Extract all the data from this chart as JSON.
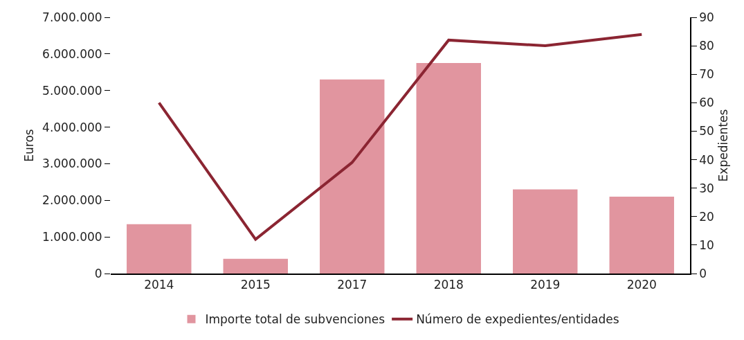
{
  "chart_data": {
    "type": "bar",
    "ylabel": "Euros",
    "y2label": "Expedientes",
    "categories": [
      "2014",
      "2015",
      "2017",
      "2018",
      "2019",
      "2020"
    ],
    "series": [
      {
        "name": "Importe total de subvenciones",
        "color": "#e1959f",
        "values": [
          1350000,
          400000,
          5300000,
          5750000,
          2300000,
          2100000
        ]
      },
      {
        "name": "Número de expedientes/entidades",
        "type": "line",
        "axis": "y2",
        "color": "#8b2532",
        "values": [
          60,
          12,
          39,
          82,
          80,
          84
        ]
      }
    ],
    "ylim": [
      0,
      7000000
    ],
    "yticks": [
      {
        "value": 0,
        "label": "0"
      },
      {
        "value": 1000000,
        "label": "1.000.000"
      },
      {
        "value": 2000000,
        "label": "2.000.000"
      },
      {
        "value": 3000000,
        "label": "3.000.000"
      },
      {
        "value": 4000000,
        "label": "4.000.000"
      },
      {
        "value": 5000000,
        "label": "5.000.000"
      },
      {
        "value": 6000000,
        "label": "6.000.000"
      },
      {
        "value": 7000000,
        "label": "7.000.000"
      }
    ],
    "y2lim": [
      0,
      90
    ],
    "y2ticks": [
      0,
      10,
      20,
      30,
      40,
      50,
      60,
      70,
      80,
      90
    ],
    "grid": false,
    "legend": "bottom",
    "marker": "none",
    "line_style": "solid"
  }
}
